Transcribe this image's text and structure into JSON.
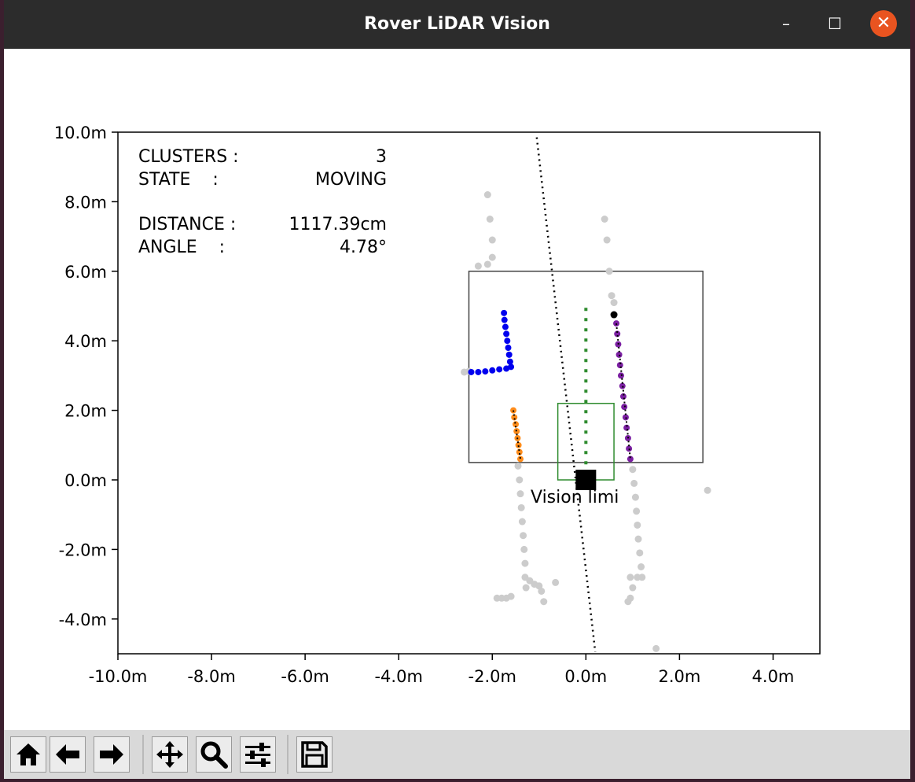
{
  "window": {
    "title": "Rover LiDAR Vision",
    "controls": {
      "minimize": "–",
      "maximize": "☐",
      "close": "✕"
    }
  },
  "info_panel": {
    "clusters_label": "CLUSTERS :",
    "clusters_value": "3",
    "state_label": "STATE    :",
    "state_value": "MOVING",
    "distance_label": "DISTANCE :",
    "distance_value": "1117.39cm",
    "angle_label": "ANGLE    :",
    "angle_value": "4.78°"
  },
  "vision_label": "Vision limi",
  "toolbar": {
    "buttons": [
      {
        "name": "home-button",
        "icon": "home-icon"
      },
      {
        "name": "back-button",
        "icon": "arrow-left-icon"
      },
      {
        "name": "forward-button",
        "icon": "arrow-right-icon"
      },
      {
        "name": "pan-button",
        "icon": "move-icon"
      },
      {
        "name": "zoom-button",
        "icon": "magnifier-icon"
      },
      {
        "name": "configure-button",
        "icon": "sliders-icon"
      },
      {
        "name": "save-button",
        "icon": "floppy-disk-icon"
      }
    ]
  },
  "chart_data": {
    "type": "scatter",
    "xlim": [
      -10,
      5
    ],
    "ylim": [
      -5,
      10
    ],
    "xticks": [
      "-10.0m",
      "-8.0m",
      "-6.0m",
      "-4.0m",
      "-2.0m",
      "0.0m",
      "2.0m",
      "4.0m"
    ],
    "yticks": [
      "10.0m",
      "8.0m",
      "6.0m",
      "4.0m",
      "2.0m",
      "0.0m",
      "-2.0m",
      "-4.0m"
    ],
    "grid": false,
    "colors": {
      "background_points": "#cccccc",
      "cluster_blue": "#0000ee",
      "cluster_orange": "#ff8c1a",
      "cluster_purple": "#7b1fa2",
      "vision_box": "#2e8b2e",
      "region_box": "#444444",
      "heading_line": "#000000"
    },
    "background_points": [
      [
        -2.1,
        8.2
      ],
      [
        -2.05,
        7.5
      ],
      [
        -2.0,
        6.9
      ],
      [
        -2.0,
        6.4
      ],
      [
        -2.1,
        6.2
      ],
      [
        -2.3,
        6.15
      ],
      [
        0.4,
        7.5
      ],
      [
        0.45,
        6.9
      ],
      [
        0.5,
        6.0
      ],
      [
        0.55,
        5.3
      ],
      [
        0.6,
        5.1
      ],
      [
        -2.6,
        3.1
      ],
      [
        -2.5,
        3.12
      ],
      [
        -1.45,
        0.4
      ],
      [
        -1.42,
        0.0
      ],
      [
        -1.4,
        -0.4
      ],
      [
        -1.38,
        -0.8
      ],
      [
        -1.36,
        -1.2
      ],
      [
        -1.34,
        -1.6
      ],
      [
        -1.32,
        -2.0
      ],
      [
        -1.3,
        -2.4
      ],
      [
        -1.3,
        -2.8
      ],
      [
        -1.28,
        -3.1
      ],
      [
        -1.2,
        -2.9
      ],
      [
        -1.1,
        -3.0
      ],
      [
        -1.0,
        -3.05
      ],
      [
        -0.95,
        -3.2
      ],
      [
        -0.9,
        -3.5
      ],
      [
        -0.65,
        -2.95
      ],
      [
        -1.7,
        -3.4
      ],
      [
        -1.8,
        -3.4
      ],
      [
        -1.9,
        -3.4
      ],
      [
        -1.6,
        -3.35
      ],
      [
        1.0,
        0.3
      ],
      [
        1.03,
        -0.1
      ],
      [
        1.06,
        -0.5
      ],
      [
        1.08,
        -0.9
      ],
      [
        1.1,
        -1.3
      ],
      [
        1.12,
        -1.7
      ],
      [
        1.15,
        -2.1
      ],
      [
        1.18,
        -2.5
      ],
      [
        1.2,
        -2.8
      ],
      [
        1.1,
        -2.8
      ],
      [
        0.95,
        -2.8
      ],
      [
        1.0,
        -3.1
      ],
      [
        0.95,
        -3.4
      ],
      [
        0.9,
        -3.5
      ],
      [
        2.6,
        -0.3
      ],
      [
        1.5,
        -4.85
      ]
    ],
    "cluster_blue": [
      [
        -1.75,
        4.8
      ],
      [
        -1.74,
        4.6
      ],
      [
        -1.72,
        4.4
      ],
      [
        -1.7,
        4.2
      ],
      [
        -1.68,
        4.0
      ],
      [
        -1.66,
        3.8
      ],
      [
        -1.64,
        3.6
      ],
      [
        -1.62,
        3.4
      ],
      [
        -1.6,
        3.25
      ],
      [
        -1.7,
        3.2
      ],
      [
        -1.85,
        3.18
      ],
      [
        -2.0,
        3.15
      ],
      [
        -2.15,
        3.12
      ],
      [
        -2.3,
        3.1
      ],
      [
        -2.45,
        3.1
      ]
    ],
    "cluster_orange": [
      [
        -1.55,
        2.0
      ],
      [
        -1.53,
        1.8
      ],
      [
        -1.5,
        1.6
      ],
      [
        -1.48,
        1.4
      ],
      [
        -1.46,
        1.2
      ],
      [
        -1.44,
        1.0
      ],
      [
        -1.42,
        0.8
      ],
      [
        -1.4,
        0.6
      ]
    ],
    "cluster_purple": [
      [
        0.65,
        4.5
      ],
      [
        0.67,
        4.2
      ],
      [
        0.69,
        3.9
      ],
      [
        0.71,
        3.6
      ],
      [
        0.73,
        3.3
      ],
      [
        0.75,
        3.0
      ],
      [
        0.78,
        2.7
      ],
      [
        0.8,
        2.4
      ],
      [
        0.82,
        2.1
      ],
      [
        0.85,
        1.8
      ],
      [
        0.87,
        1.5
      ],
      [
        0.9,
        1.2
      ],
      [
        0.92,
        0.9
      ],
      [
        0.95,
        0.6
      ]
    ],
    "cluster_centroid_marker": [
      0.6,
      4.75
    ],
    "heading_line": {
      "from": [
        -1.05,
        9.85
      ],
      "to": [
        0.2,
        -4.95
      ]
    },
    "forward_line": {
      "from": [
        0.0,
        4.95
      ],
      "to": [
        0.0,
        0.1
      ]
    },
    "region_box": {
      "x0": -2.5,
      "y0": 0.5,
      "x1": 2.5,
      "y1": 6.0
    },
    "vision_box": {
      "x0": -0.6,
      "y0": 0.0,
      "x1": 0.6,
      "y1": 2.2
    },
    "rover_marker": [
      0.0,
      0.0
    ]
  }
}
